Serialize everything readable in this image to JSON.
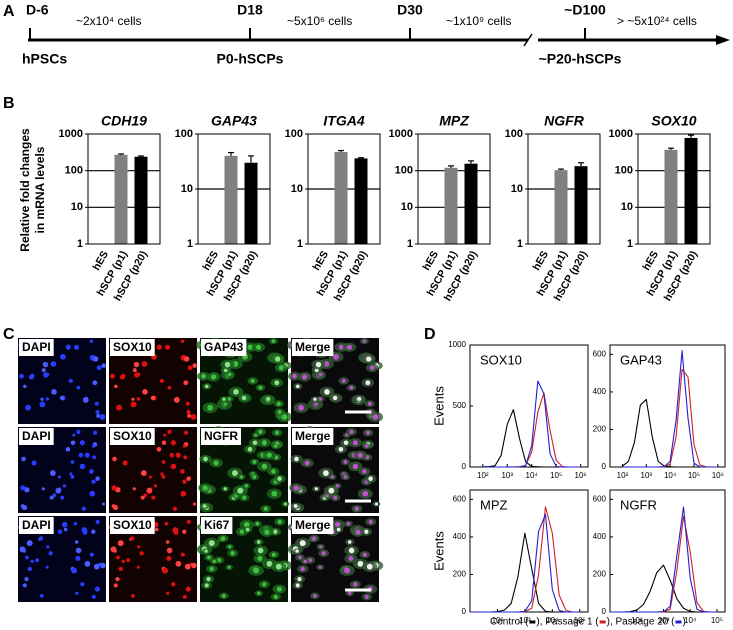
{
  "panel_labels": [
    "A",
    "B",
    "C",
    "D"
  ],
  "panel_a": {
    "days": [
      "D-6",
      "D18",
      "D30",
      "~D100"
    ],
    "cells": [
      "~2x10⁴ cells",
      "~5x10⁶ cells",
      "~1x10⁹ cells",
      "> ~5x10²⁴ cells"
    ],
    "stages": [
      "hPSCs",
      "P0-hSCPs",
      "~P20-hSCPs"
    ]
  },
  "panel_b": {
    "ylabel": [
      "Relative fold changes",
      "in mRNA levels"
    ]
  },
  "panel_c": {
    "rows": [
      [
        "DAPI",
        "SOX10",
        "GAP43",
        "Merge"
      ],
      [
        "DAPI",
        "SOX10",
        "NGFR",
        "Merge"
      ],
      [
        "DAPI",
        "SOX10",
        "Ki67",
        "Merge"
      ]
    ]
  },
  "panel_d": {
    "legend_parts": [
      "Control (",
      "), Passage 1 (",
      "), Passage 20 (",
      ")"
    ]
  },
  "chart_data": [
    {
      "type": "bar",
      "title": "CDH19",
      "categories": [
        "hES",
        "hSCP (p1)",
        "hSCP (p20)"
      ],
      "values": [
        1,
        270,
        240
      ],
      "errors": [
        0,
        15,
        12
      ],
      "colors": [
        "#808080",
        "#808080",
        "#000000"
      ],
      "yscale": "log",
      "ylim": [
        1,
        1000
      ],
      "yticks": [
        1,
        10,
        100,
        1000
      ],
      "grid": true
    },
    {
      "type": "bar",
      "title": "GAP43",
      "categories": [
        "hES",
        "hSCP (p1)",
        "hSCP (p20)"
      ],
      "values": [
        1,
        40,
        30
      ],
      "errors": [
        0,
        6,
        10
      ],
      "colors": [
        "#808080",
        "#808080",
        "#000000"
      ],
      "yscale": "log",
      "ylim": [
        1,
        100
      ],
      "yticks": [
        1,
        10,
        100
      ],
      "grid": true
    },
    {
      "type": "bar",
      "title": "ITGA4",
      "categories": [
        "hES",
        "hSCP (p1)",
        "hSCP (p20)"
      ],
      "values": [
        1,
        47,
        36
      ],
      "errors": [
        0,
        3,
        1
      ],
      "colors": [
        "#808080",
        "#808080",
        "#000000"
      ],
      "yscale": "log",
      "ylim": [
        1,
        100
      ],
      "yticks": [
        1,
        10,
        100
      ],
      "grid": true
    },
    {
      "type": "bar",
      "title": "MPZ",
      "categories": [
        "hES",
        "hSCP (p1)",
        "hSCP (p20)"
      ],
      "values": [
        1,
        120,
        155
      ],
      "errors": [
        0,
        15,
        30
      ],
      "colors": [
        "#808080",
        "#808080",
        "#000000"
      ],
      "yscale": "log",
      "ylim": [
        1,
        1000
      ],
      "yticks": [
        1,
        10,
        100,
        1000
      ],
      "grid": true
    },
    {
      "type": "bar",
      "title": "NGFR",
      "categories": [
        "hES",
        "hSCP (p1)",
        "hSCP (p20)"
      ],
      "values": [
        1,
        22,
        26
      ],
      "errors": [
        0,
        1,
        4
      ],
      "colors": [
        "#808080",
        "#808080",
        "#000000"
      ],
      "yscale": "log",
      "ylim": [
        1,
        100
      ],
      "yticks": [
        1,
        10,
        100
      ],
      "grid": true
    },
    {
      "type": "bar",
      "title": "SOX10",
      "categories": [
        "hES",
        "hSCP (p1)",
        "hSCP (p20)"
      ],
      "values": [
        1,
        370,
        780
      ],
      "errors": [
        0,
        40,
        150
      ],
      "colors": [
        "#808080",
        "#808080",
        "#000000"
      ],
      "yscale": "log",
      "ylim": [
        1,
        1000
      ],
      "yticks": [
        1,
        10,
        100,
        1000
      ],
      "grid": true
    },
    {
      "type": "line",
      "title": "SOX10",
      "ylabel": "Events",
      "xscale": "log",
      "x": [
        100,
        178,
        316,
        562,
        1000,
        1778,
        3162,
        5623,
        10000,
        17783,
        31623,
        56234,
        100000,
        177828,
        316228,
        562341,
        1000000
      ],
      "xlim": [
        30,
        2000000
      ],
      "xticks": [
        {
          "value": 100,
          "label": "10²"
        },
        {
          "value": 1000,
          "label": "10³"
        },
        {
          "value": 10000,
          "label": "10⁴"
        },
        {
          "value": 100000,
          "label": "10⁵"
        },
        {
          "value": 1000000,
          "label": "10⁶"
        }
      ],
      "ylim": [
        0,
        1000
      ],
      "yticks": [
        0,
        500,
        1000
      ],
      "series": [
        {
          "color": "#000000",
          "values": [
            2,
            4,
            10,
            95,
            350,
            470,
            235,
            43,
            5,
            2,
            0,
            0,
            0,
            0,
            0,
            0,
            0
          ]
        },
        {
          "color": "#d02020",
          "values": [
            0,
            0,
            0,
            0,
            0,
            1,
            3,
            12,
            124,
            450,
            607,
            300,
            55,
            4,
            0,
            0,
            0
          ]
        },
        {
          "color": "#2020d0",
          "values": [
            0,
            0,
            0,
            0,
            0,
            0,
            1,
            9,
            175,
            705,
            600,
            108,
            4,
            0,
            0,
            0,
            0
          ]
        }
      ]
    },
    {
      "type": "line",
      "title": "GAP43",
      "xscale": "log",
      "x": [
        100,
        178,
        316,
        562,
        1000,
        1778,
        3162,
        5623,
        10000,
        17783,
        31623,
        56234,
        100000,
        177828,
        316228,
        562341,
        1000000
      ],
      "xlim": [
        30,
        2000000
      ],
      "xticks": [
        {
          "value": 100,
          "label": "10²"
        },
        {
          "value": 1000,
          "label": "10³"
        },
        {
          "value": 10000,
          "label": "10⁴"
        },
        {
          "value": 100000,
          "label": "10⁵"
        },
        {
          "value": 1000000,
          "label": "10⁶"
        }
      ],
      "ylim": [
        0,
        650
      ],
      "yticks": [
        0,
        200,
        400,
        600
      ],
      "series": [
        {
          "color": "#000000",
          "values": [
            5,
            30,
            130,
            330,
            360,
            160,
            30,
            5,
            1,
            0,
            0,
            0,
            0,
            0,
            0,
            0,
            0
          ]
        },
        {
          "color": "#d02020",
          "values": [
            0,
            0,
            0,
            0,
            0,
            0,
            0,
            1,
            15,
            160,
            520,
            480,
            120,
            10,
            1,
            0,
            0
          ]
        },
        {
          "color": "#2020d0",
          "values": [
            0,
            0,
            0,
            0,
            0,
            0,
            0,
            2,
            30,
            250,
            620,
            260,
            20,
            1,
            0,
            0,
            0
          ]
        }
      ]
    },
    {
      "type": "line",
      "title": "MPZ",
      "ylabel": "Events",
      "xscale": "log",
      "x": [
        10,
        18,
        32,
        56,
        100,
        178,
        316,
        562,
        1000,
        1778,
        3162,
        5623,
        10000,
        17783,
        31623,
        56234,
        100000
      ],
      "xlim": [
        10,
        200000
      ],
      "xticks": [
        {
          "value": 100,
          "label": "10²"
        },
        {
          "value": 1000,
          "label": "10³"
        },
        {
          "value": 10000,
          "label": "10⁴"
        },
        {
          "value": 100000,
          "label": "10⁵"
        }
      ],
      "ylim": [
        0,
        650
      ],
      "yticks": [
        0,
        200,
        400,
        600
      ],
      "series": [
        {
          "color": "#000000",
          "values": [
            0,
            0,
            0,
            0,
            2,
            10,
            45,
            190,
            420,
            230,
            45,
            4,
            0,
            0,
            0,
            0,
            0
          ]
        },
        {
          "color": "#d02020",
          "values": [
            0,
            0,
            0,
            0,
            0,
            0,
            0,
            0,
            1,
            20,
            200,
            560,
            420,
            90,
            8,
            0,
            0
          ]
        },
        {
          "color": "#2020d0",
          "values": [
            0,
            0,
            0,
            0,
            0,
            0,
            0,
            0,
            3,
            60,
            430,
            520,
            120,
            8,
            0,
            0,
            0
          ]
        }
      ]
    },
    {
      "type": "line",
      "title": "NGFR",
      "xscale": "log",
      "x": [
        10,
        18,
        32,
        56,
        100,
        178,
        316,
        562,
        1000,
        1778,
        3162,
        5623,
        10000,
        17783,
        31623,
        56234,
        100000
      ],
      "xlim": [
        10,
        200000
      ],
      "xticks": [
        {
          "value": 100,
          "label": "10²"
        },
        {
          "value": 1000,
          "label": "10³"
        },
        {
          "value": 10000,
          "label": "10⁴"
        },
        {
          "value": 100000,
          "label": "10⁵"
        }
      ],
      "ylim": [
        0,
        650
      ],
      "yticks": [
        0,
        200,
        400,
        600
      ],
      "series": [
        {
          "color": "#000000",
          "values": [
            0,
            0,
            0,
            2,
            10,
            40,
            110,
            210,
            250,
            170,
            70,
            20,
            3,
            0,
            0,
            0,
            0
          ]
        },
        {
          "color": "#d02020",
          "values": [
            0,
            0,
            0,
            0,
            0,
            0,
            0,
            0,
            1,
            15,
            220,
            510,
            320,
            50,
            3,
            0,
            0
          ]
        },
        {
          "color": "#2020d0",
          "values": [
            0,
            0,
            0,
            0,
            0,
            0,
            0,
            0,
            2,
            30,
            300,
            560,
            180,
            15,
            0,
            0,
            0
          ]
        }
      ]
    }
  ]
}
